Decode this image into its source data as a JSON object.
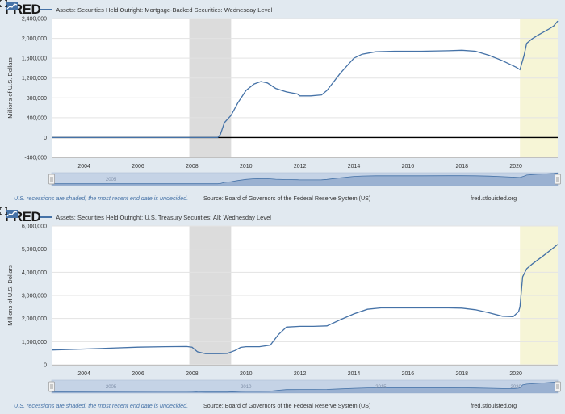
{
  "brand": {
    "logo_text": "FRED",
    "accent": "#4572a7",
    "recession_fill": "#dcdcdc",
    "recent_fill": "#f6f5d6"
  },
  "footer": {
    "note": "U.S. recessions are shaded; the most recent end date is undecided.",
    "source": "Source: Board of Governors of the Federal Reserve System (US)",
    "site": "fred.stlouisfed.org"
  },
  "chart_data": [
    {
      "type": "line",
      "title": "Assets: Securities Held Outright: Mortgage-Backed Securities: Wednesday Level",
      "ylabel": "Millions of U.S. Dollars",
      "xlabel": "",
      "ylim": [
        -400000,
        2400000
      ],
      "yticks": [
        -400000,
        0,
        400000,
        800000,
        1200000,
        1600000,
        2000000,
        2400000
      ],
      "ytick_labels": [
        "-400,000",
        "0",
        "400,000",
        "800,000",
        "1,200,000",
        "1,600,000",
        "2,000,000",
        "2,400,000"
      ],
      "xlim": [
        2002.8,
        2021.55
      ],
      "xticks": [
        2004,
        2006,
        2008,
        2010,
        2012,
        2014,
        2016,
        2018,
        2020
      ],
      "xtick_labels": [
        "2004",
        "2006",
        "2008",
        "2010",
        "2012",
        "2014",
        "2016",
        "2018",
        "2020"
      ],
      "zero_line": true,
      "navigator_labels": [
        "2005"
      ],
      "shaded": [
        {
          "kind": "recession",
          "x": [
            2007.9,
            2009.45
          ]
        },
        {
          "kind": "recent",
          "x": [
            2020.15,
            2021.55
          ]
        }
      ],
      "series": [
        {
          "name": "Assets: Securities Held Outright: Mortgage-Backed Securities: Wednesday Level",
          "x": [
            2002.8,
            2008.95,
            2009.05,
            2009.2,
            2009.45,
            2009.7,
            2010.0,
            2010.3,
            2010.55,
            2010.8,
            2011.1,
            2011.5,
            2011.9,
            2012.0,
            2012.4,
            2012.8,
            2013.0,
            2013.5,
            2014.0,
            2014.3,
            2014.8,
            2015.5,
            2016.5,
            2017.5,
            2018.0,
            2018.5,
            2019.0,
            2019.5,
            2020.0,
            2020.15,
            2020.3,
            2020.4,
            2020.6,
            2020.8,
            2021.0,
            2021.2,
            2021.4,
            2021.55
          ],
          "y": [
            0,
            0,
            60000,
            300000,
            450000,
            700000,
            950000,
            1080000,
            1130000,
            1100000,
            990000,
            920000,
            880000,
            840000,
            840000,
            860000,
            950000,
            1300000,
            1600000,
            1680000,
            1730000,
            1740000,
            1740000,
            1750000,
            1760000,
            1740000,
            1660000,
            1550000,
            1420000,
            1370000,
            1650000,
            1900000,
            1990000,
            2060000,
            2120000,
            2180000,
            2250000,
            2350000
          ]
        }
      ]
    },
    {
      "type": "line",
      "title": "Assets: Securities Held Outright: U.S. Treasury Securities: All: Wednesday Level",
      "ylabel": "Millions of U.S. Dollars",
      "xlabel": "",
      "ylim": [
        0,
        6000000
      ],
      "yticks": [
        0,
        1000000,
        2000000,
        3000000,
        4000000,
        5000000,
        6000000
      ],
      "ytick_labels": [
        "0",
        "1,000,000",
        "2,000,000",
        "3,000,000",
        "4,000,000",
        "5,000,000",
        "6,000,000"
      ],
      "xlim": [
        2002.8,
        2021.55
      ],
      "xticks": [
        2004,
        2006,
        2008,
        2010,
        2012,
        2014,
        2016,
        2018,
        2020
      ],
      "xtick_labels": [
        "2004",
        "2006",
        "2008",
        "2010",
        "2012",
        "2014",
        "2016",
        "2018",
        "2020"
      ],
      "zero_line": false,
      "navigator_labels": [
        "2005",
        "2010",
        "2015",
        "2020"
      ],
      "shaded": [
        {
          "kind": "recession",
          "x": [
            2007.9,
            2009.45
          ]
        },
        {
          "kind": "recent",
          "x": [
            2020.15,
            2021.55
          ]
        }
      ],
      "series": [
        {
          "name": "Assets: Securities Held Outright: U.S. Treasury Securities: All: Wednesday Level",
          "x": [
            2002.8,
            2004.0,
            2005.0,
            2006.0,
            2007.0,
            2007.8,
            2008.0,
            2008.2,
            2008.5,
            2009.0,
            2009.3,
            2009.6,
            2009.8,
            2010.0,
            2010.5,
            2010.9,
            2011.2,
            2011.5,
            2012.0,
            2012.5,
            2013.0,
            2013.5,
            2014.0,
            2014.5,
            2015.0,
            2016.0,
            2017.0,
            2017.5,
            2018.0,
            2018.5,
            2019.0,
            2019.5,
            2019.9,
            2020.1,
            2020.15,
            2020.25,
            2020.4,
            2020.6,
            2021.0,
            2021.55
          ],
          "y": [
            640000,
            680000,
            720000,
            760000,
            780000,
            790000,
            760000,
            560000,
            480000,
            480000,
            490000,
            620000,
            750000,
            780000,
            780000,
            850000,
            1300000,
            1630000,
            1660000,
            1660000,
            1680000,
            1950000,
            2200000,
            2400000,
            2460000,
            2460000,
            2460000,
            2460000,
            2450000,
            2380000,
            2250000,
            2100000,
            2080000,
            2300000,
            2500000,
            3800000,
            4150000,
            4350000,
            4700000,
            5200000
          ]
        }
      ]
    }
  ]
}
